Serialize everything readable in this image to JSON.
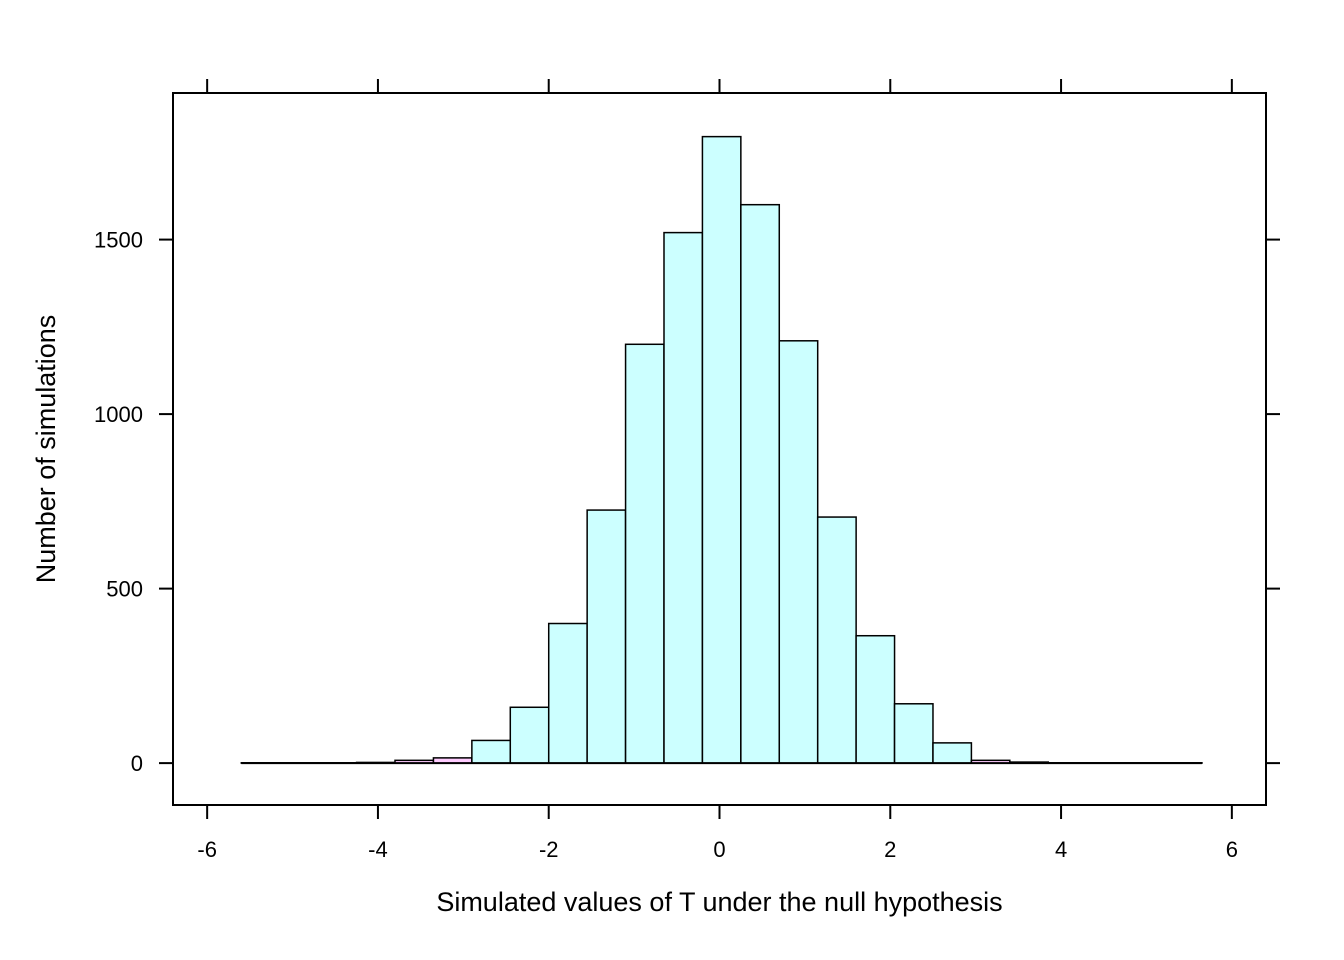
{
  "chart_data": {
    "type": "bar",
    "xlabel": "Simulated values of T under the null hypothesis",
    "ylabel": "Number of simulations",
    "xlim": [
      -6.4,
      6.4
    ],
    "ylim": [
      -120,
      1920
    ],
    "xticks": [
      -6,
      -4,
      -2,
      0,
      2,
      4,
      6
    ],
    "xtick_labels": [
      "-6",
      "-4",
      "-2",
      "0",
      "2",
      "4",
      "6"
    ],
    "yticks": [
      0,
      500,
      1000,
      1500
    ],
    "ytick_labels": [
      "0",
      "500",
      "1000",
      "1500"
    ],
    "grid": false,
    "legend": "none",
    "colors": {
      "bar_fill": "#ccffff",
      "tail_fill": "#ffccff",
      "outline": "#000000"
    },
    "bins": [
      {
        "x0": -5.6,
        "x1": -5.15,
        "count": 1,
        "tail": true
      },
      {
        "x0": -5.15,
        "x1": -4.7,
        "count": 1,
        "tail": true
      },
      {
        "x0": -4.7,
        "x1": -4.25,
        "count": 1,
        "tail": true
      },
      {
        "x0": -4.25,
        "x1": -3.8,
        "count": 2,
        "tail": true
      },
      {
        "x0": -3.8,
        "x1": -3.35,
        "count": 8,
        "tail": true
      },
      {
        "x0": -3.35,
        "x1": -2.9,
        "count": 15,
        "tail": true
      },
      {
        "x0": -2.9,
        "x1": -2.45,
        "count": 65,
        "tail": false
      },
      {
        "x0": -2.45,
        "x1": -2.0,
        "count": 160,
        "tail": false
      },
      {
        "x0": -2.0,
        "x1": -1.55,
        "count": 400,
        "tail": false
      },
      {
        "x0": -1.55,
        "x1": -1.1,
        "count": 725,
        "tail": false
      },
      {
        "x0": -1.1,
        "x1": -0.65,
        "count": 1200,
        "tail": false
      },
      {
        "x0": -0.65,
        "x1": -0.2,
        "count": 1520,
        "tail": false
      },
      {
        "x0": -0.2,
        "x1": 0.25,
        "count": 1795,
        "tail": false
      },
      {
        "x0": 0.25,
        "x1": 0.7,
        "count": 1600,
        "tail": false
      },
      {
        "x0": 0.7,
        "x1": 1.15,
        "count": 1210,
        "tail": false
      },
      {
        "x0": 1.15,
        "x1": 1.6,
        "count": 705,
        "tail": false
      },
      {
        "x0": 1.6,
        "x1": 2.05,
        "count": 365,
        "tail": false
      },
      {
        "x0": 2.05,
        "x1": 2.5,
        "count": 170,
        "tail": false
      },
      {
        "x0": 2.5,
        "x1": 2.95,
        "count": 58,
        "tail": false
      },
      {
        "x0": 2.95,
        "x1": 3.4,
        "count": 8,
        "tail": true
      },
      {
        "x0": 3.4,
        "x1": 3.85,
        "count": 3,
        "tail": true
      },
      {
        "x0": 3.85,
        "x1": 4.3,
        "count": 1,
        "tail": true
      },
      {
        "x0": 4.3,
        "x1": 4.75,
        "count": 1,
        "tail": true
      },
      {
        "x0": 4.75,
        "x1": 5.2,
        "count": 1,
        "tail": true
      },
      {
        "x0": 5.2,
        "x1": 5.65,
        "count": 1,
        "tail": true
      }
    ]
  }
}
